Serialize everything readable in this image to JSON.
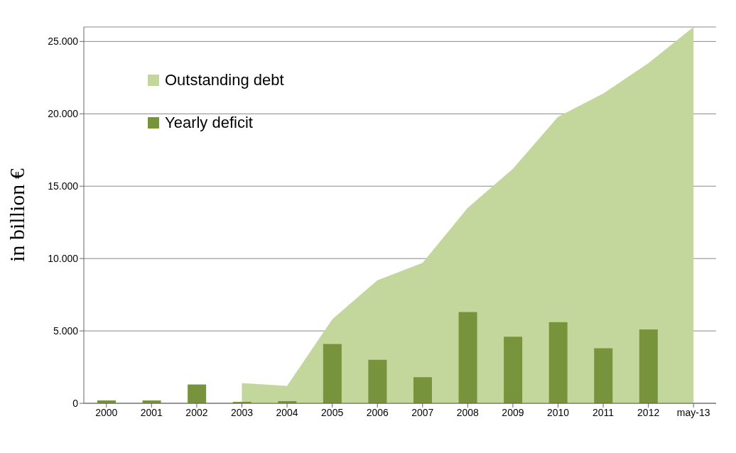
{
  "chart_data": {
    "type": "bar",
    "ylabel": "in billion €",
    "categories": [
      "2000",
      "2001",
      "2002",
      "2003",
      "2004",
      "2005",
      "2006",
      "2007",
      "2008",
      "2009",
      "2010",
      "2011",
      "2012",
      "may-13"
    ],
    "series": [
      {
        "name": "Outstanding debt",
        "type": "area",
        "color": "#c3d69b",
        "values": [
          null,
          null,
          null,
          1400,
          1200,
          5800,
          8500,
          9700,
          13500,
          16200,
          19800,
          21400,
          23500,
          26000
        ]
      },
      {
        "name": "Yearly deficit",
        "color": "#77933c",
        "values": [
          200,
          200,
          1300,
          100,
          150,
          4100,
          3000,
          1800,
          6300,
          4600,
          5600,
          3800,
          5100,
          null
        ]
      }
    ],
    "ylim": [
      0,
      26000
    ],
    "yticks": [
      {
        "value": 0,
        "label": "0"
      },
      {
        "value": 5000,
        "label": "5.000"
      },
      {
        "value": 10000,
        "label": "10.000"
      },
      {
        "value": 15000,
        "label": "15.000"
      },
      {
        "value": 20000,
        "label": "20.000"
      },
      {
        "value": 25000,
        "label": "25.000"
      }
    ],
    "grid": "y",
    "legend": "top left"
  }
}
